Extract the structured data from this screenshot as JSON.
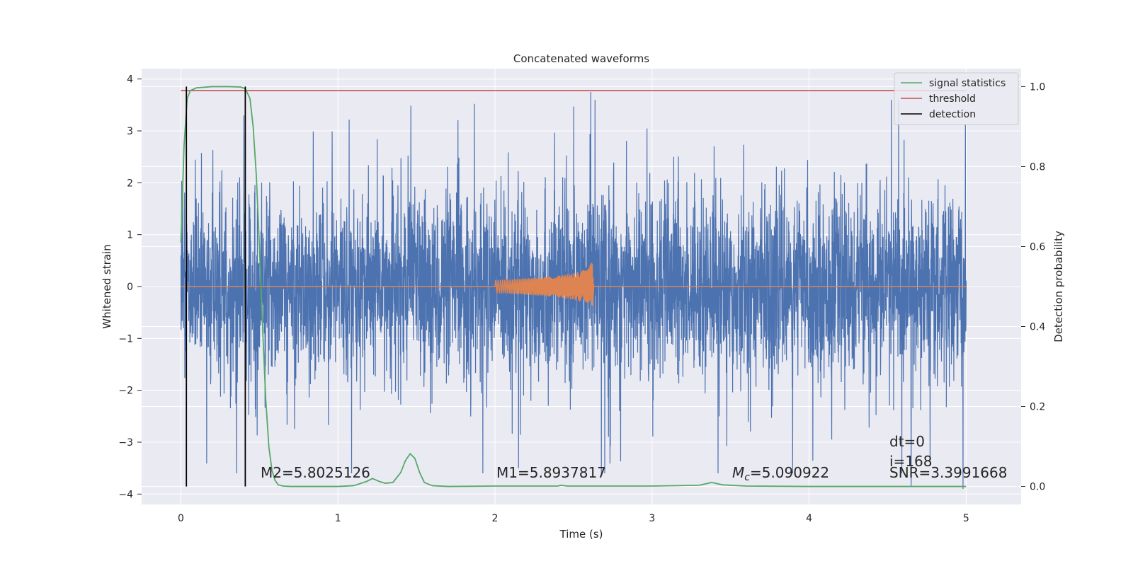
{
  "chart_data": {
    "type": "line",
    "title": "Concatenated waveforms",
    "xlabel": "Time (s)",
    "ylabel": "Whitened strain",
    "y2label": "Detection probability",
    "xlim": [
      -0.25,
      5.35
    ],
    "ylim": [
      -4.2,
      4.2
    ],
    "y2lim": [
      -0.045,
      1.045
    ],
    "xticks": [
      0,
      1,
      2,
      3,
      4,
      5
    ],
    "yticks": [
      -4,
      -3,
      -2,
      -1,
      0,
      1,
      2,
      3,
      4
    ],
    "y2ticks": [
      0.0,
      0.2,
      0.4,
      0.6,
      0.8,
      1.0
    ],
    "grid": true,
    "legend_position": "top-right",
    "legend": [
      "signal statistics",
      "threshold",
      "detection"
    ],
    "colors": {
      "strain": "#4c72b0",
      "injection": "#dd8452",
      "signal_statistics": "#55a868",
      "threshold": "#c44e52",
      "detection": "#000000",
      "axes_bg": "#eaeaf2",
      "grid": "#ffffff"
    },
    "series": [
      {
        "name": "",
        "axis": "left",
        "description_points": [
          {
            "x": 0.0,
            "y": 0.6
          },
          {
            "x": 2.61,
            "y": 3.75
          },
          {
            "x": 2.15,
            "y": -3.5
          },
          {
            "x": 4.65,
            "y": -3.85
          },
          {
            "x": 4.98,
            "y": -3.9
          }
        ]
      },
      {
        "name": "",
        "axis": "left",
        "x": [
          0.0,
          2.0,
          2.1,
          2.2,
          2.3,
          2.4,
          2.5,
          2.55,
          2.6,
          2.62,
          2.63,
          5.0
        ],
        "y_amplitude": [
          0.0,
          0.12,
          0.14,
          0.16,
          0.18,
          0.21,
          0.26,
          0.3,
          0.38,
          0.5,
          0.0,
          0.0
        ]
      },
      {
        "name": "signal statistics",
        "axis": "right",
        "x": [
          0.0,
          0.02,
          0.04,
          0.06,
          0.1,
          0.2,
          0.3,
          0.38,
          0.41,
          0.44,
          0.46,
          0.48,
          0.5,
          0.52,
          0.54,
          0.56,
          0.58,
          0.6,
          0.62,
          0.65,
          0.7,
          0.8,
          1.0,
          1.1,
          1.18,
          1.22,
          1.26,
          1.3,
          1.35,
          1.4,
          1.43,
          1.46,
          1.49,
          1.52,
          1.55,
          1.6,
          1.7,
          2.0,
          2.4,
          2.42,
          2.46,
          3.0,
          3.3,
          3.38,
          3.45,
          3.6,
          4.0,
          5.0
        ],
        "y": [
          0.61,
          0.85,
          0.97,
          0.99,
          0.997,
          1.0,
          1.0,
          0.999,
          0.995,
          0.97,
          0.9,
          0.78,
          0.6,
          0.4,
          0.22,
          0.1,
          0.04,
          0.015,
          0.004,
          0.001,
          0.0,
          0.0,
          0.0,
          0.002,
          0.012,
          0.02,
          0.013,
          0.008,
          0.01,
          0.035,
          0.065,
          0.082,
          0.07,
          0.035,
          0.01,
          0.002,
          0.0,
          0.001,
          0.001,
          0.003,
          0.001,
          0.001,
          0.003,
          0.01,
          0.004,
          0.001,
          0.0,
          0.0
        ]
      },
      {
        "name": "threshold",
        "axis": "right",
        "x": [
          0.0,
          5.0
        ],
        "y": [
          0.99,
          0.99
        ]
      },
      {
        "name": "detection",
        "axis": "right",
        "x_positions": [
          0.035,
          0.41
        ],
        "y_range": [
          0.0,
          1.0
        ]
      }
    ],
    "annotations": {
      "m2": "M2=5.8025126",
      "m1": "M1=5.8937817",
      "mc_symbol": "M",
      "mc_sub": "c",
      "mc_value": "=5.090922",
      "dt": "dt=0",
      "i": "i=168",
      "snr": "SNR=3.3991668"
    }
  }
}
